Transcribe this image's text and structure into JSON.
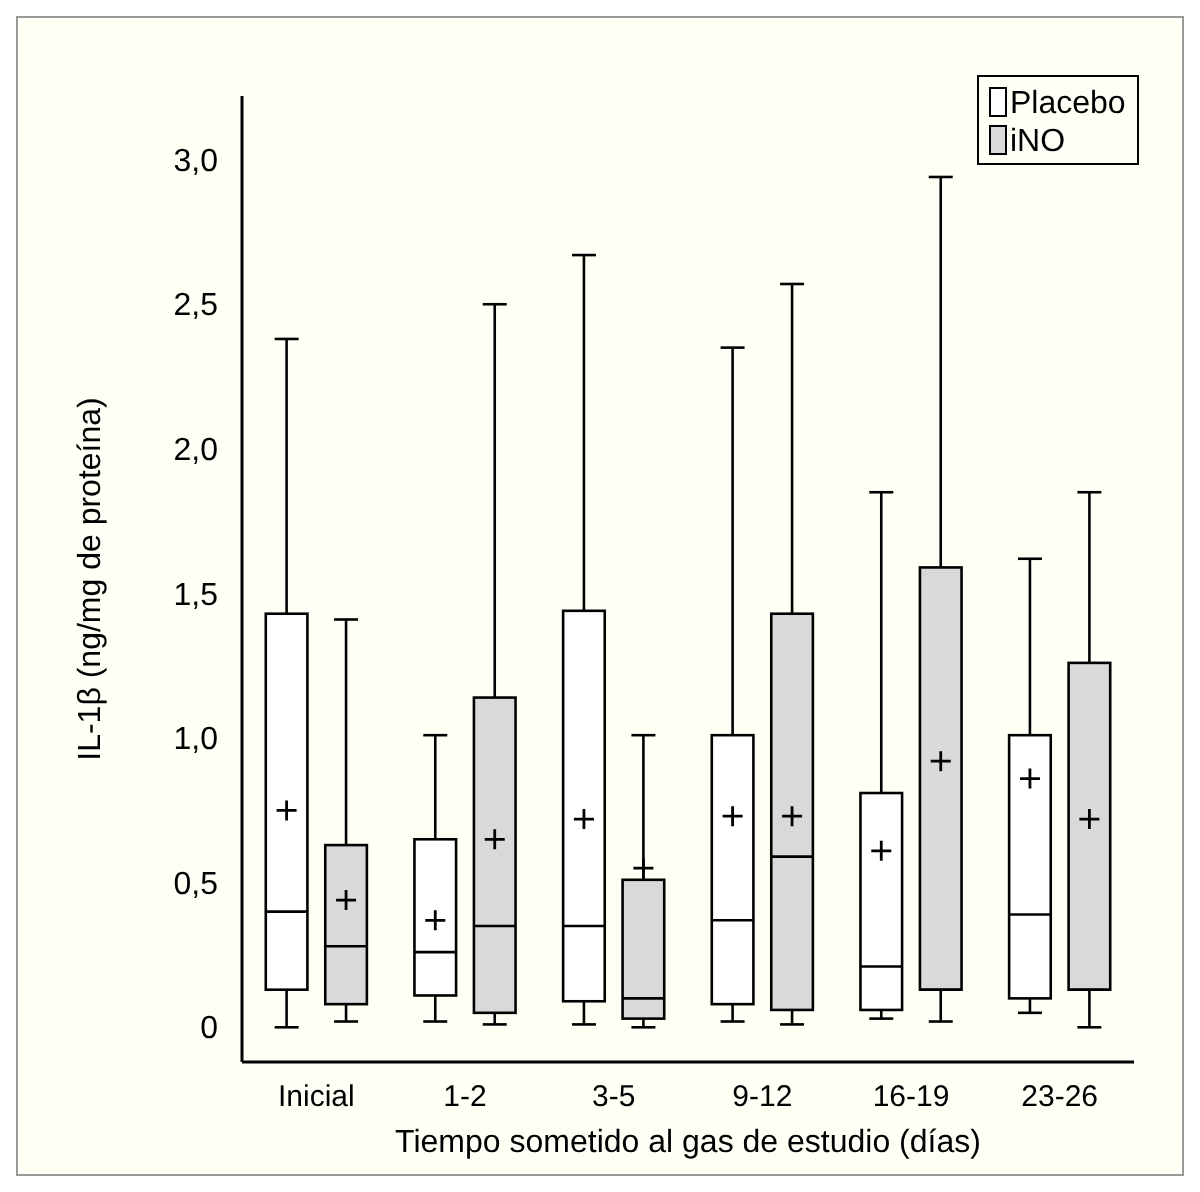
{
  "chart_data": {
    "type": "box",
    "xlabel": "Tiempo sometido al gas de estudio (días)",
    "ylabel": "IL-1β (ng/mg de proteína)",
    "categories": [
      "Inicial",
      "1-2",
      "3-5",
      "9-12",
      "16-19",
      "23-26"
    ],
    "ylim": [
      -0.12,
      3.22
    ],
    "yticks": [
      0,
      {
        "value": 0.5,
        "label": "0,5"
      },
      {
        "value": 1,
        "label": "1,0"
      },
      {
        "value": 1.5,
        "label": "1,5"
      },
      {
        "value": 2,
        "label": "2,0"
      },
      {
        "value": 2.5,
        "label": "2,5"
      },
      {
        "value": 3,
        "label": "3,0"
      }
    ],
    "legend": "top right",
    "grid": false,
    "series": [
      {
        "name": "Placebo",
        "color": "#ffffff",
        "boxes": [
          {
            "low": 0,
            "q1": 0.13,
            "median": 0.4,
            "q3": 1.43,
            "high": 2.38,
            "mean": 0.75
          },
          {
            "low": 0.02,
            "q1": 0.11,
            "median": 0.26,
            "q3": 0.65,
            "high": 1.01,
            "mean": 0.37
          },
          {
            "low": 0.01,
            "q1": 0.09,
            "median": 0.35,
            "q3": 1.44,
            "high": 2.67,
            "mean": 0.72
          },
          {
            "low": 0.02,
            "q1": 0.08,
            "median": 0.37,
            "q3": 1.01,
            "high": 2.35,
            "mean": 0.73
          },
          {
            "low": 0.03,
            "q1": 0.06,
            "median": 0.21,
            "q3": 0.81,
            "high": 1.85,
            "mean": 0.61
          },
          {
            "low": 0.05,
            "q1": 0.1,
            "median": 0.39,
            "q3": 1.01,
            "high": 1.62,
            "mean": 0.86
          }
        ]
      },
      {
        "name": "iNO",
        "color": "#d9d9d9",
        "boxes": [
          {
            "low": 0.02,
            "q1": 0.08,
            "median": 0.28,
            "q3": 0.63,
            "high": 1.41,
            "mean": 0.44
          },
          {
            "low": 0.01,
            "q1": 0.05,
            "median": 0.35,
            "q3": 1.14,
            "high": 2.5,
            "mean": 0.65
          },
          {
            "low": 0,
            "q1": 0.03,
            "median": 0.1,
            "q3": 0.51,
            "high": 1.01,
            "mean": 0.55
          },
          {
            "low": 0.01,
            "q1": 0.06,
            "median": 0.59,
            "q3": 1.43,
            "high": 2.57,
            "mean": 0.73
          },
          {
            "low": 0.02,
            "q1": 0.13,
            "median": 0.13,
            "q3": 1.59,
            "high": 2.94,
            "mean": 0.92
          },
          {
            "low": 0,
            "q1": 0.13,
            "median": 0.13,
            "q3": 1.26,
            "high": 1.85,
            "mean": 0.72
          }
        ]
      }
    ]
  }
}
